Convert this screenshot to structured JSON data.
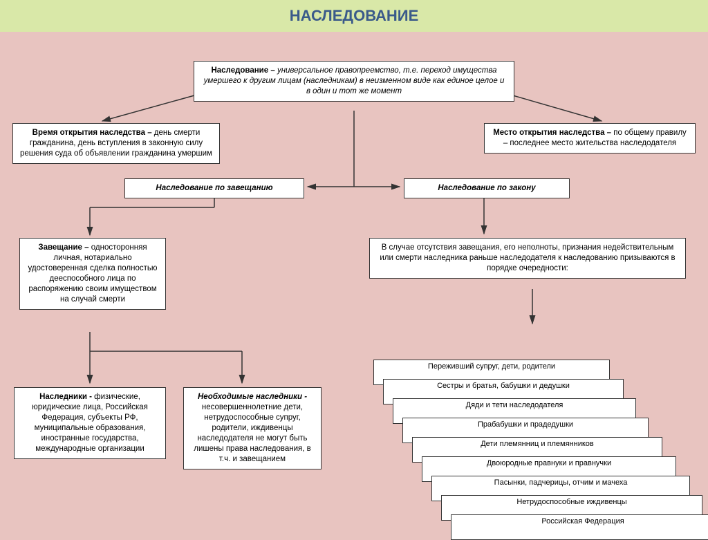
{
  "title": "НАСЛЕДОВАНИЕ",
  "definition": {
    "bold": "Наследование – ",
    "text": "универсальное правопреемство, т.е. переход имущества умершего к другим лицам (наследникам) в неизменном виде как единое целое  и в один и тот же момент"
  },
  "time": {
    "bold": "Время открытия наследства – ",
    "text": "день смерти гражданина, день вступления в законную силу решения суда об объявлении гражданина умершим"
  },
  "place": {
    "bold": "Место открытия наследства – ",
    "text": "по общему правилу – последнее место жительства наследодателя"
  },
  "byWill": "Наследование по завещанию",
  "byLaw": "Наследование по закону",
  "will": {
    "bold": "Завещание – ",
    "text": "односторонняя личная,  нотариально удостоверенная сделка полностью дееспособного лица по распоряжению своим имуществом на случай смерти"
  },
  "absenceText": "В случае отсутствия завещания, его неполноты, признания недействительным или смерти наследника раньше наследодателя к наследованию призываются в порядке очередности:",
  "heirs": {
    "bold": "Наследники -  ",
    "text": "физические, юридические лица, Российская Федерация, субъекты РФ, муниципальные образования, иностранные государства, международные организации"
  },
  "required": {
    "bold": "Необходимые наследники - ",
    "text": "несовершеннолетние дети, нетрудоспособные супруг, родители, иждивенцы наследодателя не могут быть лишены права наследования, в т.ч. и завещанием"
  },
  "queue": [
    "Переживший супруг, дети, родители",
    "Сестры и братья,  бабушки и дедушки",
    "Дяди и тети наследодателя",
    "Прабабушки и прадедушки",
    "Дети   племянниц и племянников",
    "Двоюродные правнуки и правнучки",
    "Пасынки, падчерицы, отчим и мачеха",
    "Нетрудоспособные иждивенцы",
    "Российская Федерация"
  ],
  "colors": {
    "background": "#e8c4c0",
    "titleBg": "#d9e8a8",
    "titleColor": "#3a5a8a",
    "boxBg": "#ffffff",
    "border": "#333333"
  },
  "layout": {
    "titleFontSize": 22,
    "boxFontSize": 11.5,
    "stackFontSize": 11
  }
}
